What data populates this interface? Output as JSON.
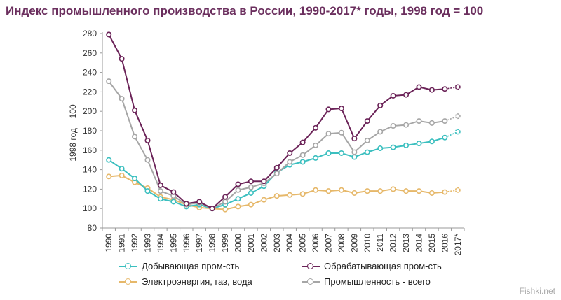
{
  "title": "Индекс промышленного производства в России, 1990-2017* годы, 1998 год = 100",
  "watermark": "Fishki.net",
  "chart_data": {
    "type": "line",
    "title": "Индекс промышленного производства в России, 1990-2017* годы, 1998 год = 100",
    "ylabel": "1998 год = 100",
    "xlabel": "",
    "ylim": [
      80,
      280
    ],
    "yticks": [
      80,
      100,
      120,
      140,
      160,
      180,
      200,
      220,
      240,
      260,
      280
    ],
    "grid": false,
    "legend_position": "bottom",
    "x": [
      "1990",
      "1991",
      "1992",
      "1993",
      "1994",
      "1995",
      "1996",
      "1997",
      "1998",
      "1999",
      "2000",
      "2001",
      "2002",
      "2003",
      "2004",
      "2005",
      "2006",
      "2007",
      "2008",
      "2009",
      "2010",
      "2011",
      "2012",
      "2013",
      "2014",
      "2015",
      "2016",
      "2017*"
    ],
    "series": [
      {
        "name": "Добывающая пром-сть",
        "color": "#3bbfbf",
        "values": [
          150,
          141,
          131,
          118,
          110,
          107,
          102,
          104,
          100,
          104,
          110,
          116,
          123,
          137,
          145,
          148,
          152,
          157,
          157,
          153,
          158,
          162,
          163,
          165,
          167,
          169,
          173,
          179
        ]
      },
      {
        "name": "Обрабатывающая пром-сть",
        "color": "#6b2358",
        "values": [
          279,
          254,
          201,
          170,
          124,
          117,
          105,
          107,
          100,
          112,
          125,
          128,
          128,
          142,
          157,
          168,
          183,
          202,
          203,
          172,
          190,
          206,
          216,
          217,
          225,
          222,
          223,
          225
        ]
      },
      {
        "name": "Электроэнергия, газ, вода",
        "color": "#e6b86a",
        "values": [
          133,
          134,
          127,
          121,
          112,
          109,
          104,
          101,
          100,
          99,
          102,
          104,
          109,
          113,
          114,
          115,
          119,
          118,
          119,
          116,
          118,
          118,
          120,
          118,
          118,
          116,
          117,
          119
        ]
      },
      {
        "name": "Промышленность - всего",
        "color": "#a6a6a6",
        "values": [
          231,
          213,
          174,
          150,
          118,
          113,
          104,
          106,
          100,
          107,
          119,
          122,
          126,
          136,
          148,
          155,
          165,
          177,
          178,
          158,
          170,
          179,
          185,
          186,
          190,
          188,
          190,
          195
        ]
      }
    ]
  }
}
